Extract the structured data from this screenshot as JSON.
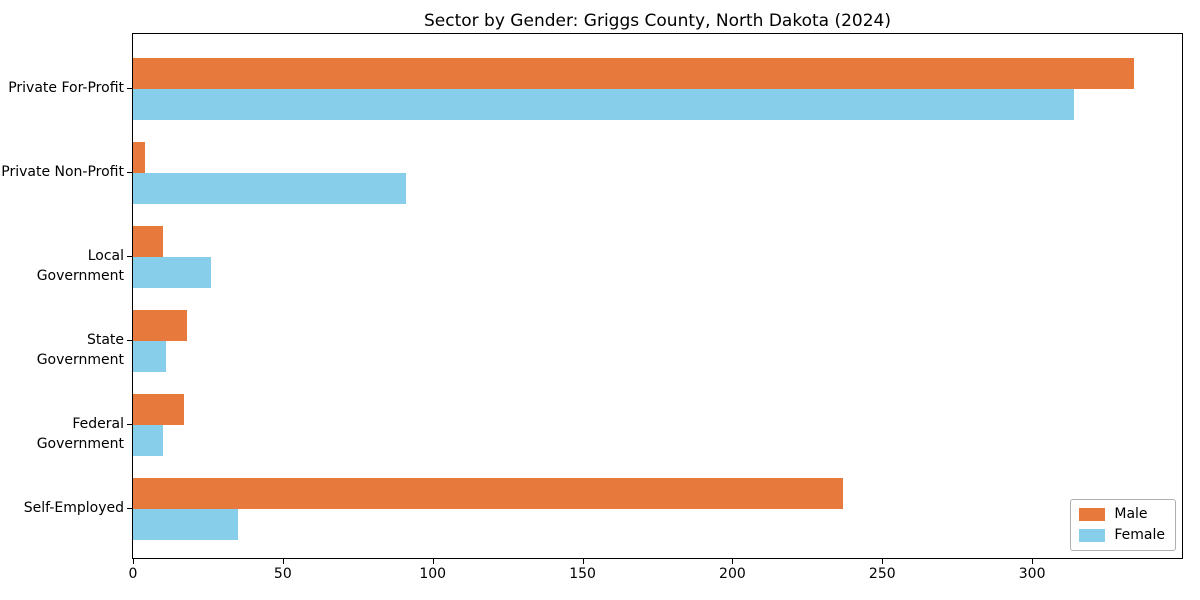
{
  "chart_data": {
    "type": "bar",
    "orientation": "horizontal",
    "title": "Sector by Gender: Griggs County, North Dakota (2024)",
    "categories": [
      "Private For-Profit",
      "Private Non-Profit",
      "Local Government",
      "State Government",
      "Federal Government",
      "Self-Employed"
    ],
    "series": [
      {
        "name": "Male",
        "color": "#e8793d",
        "values": [
          334,
          4,
          10,
          18,
          17,
          237
        ]
      },
      {
        "name": "Female",
        "color": "#87ceeb",
        "values": [
          314,
          91,
          26,
          11,
          10,
          35
        ]
      }
    ],
    "xlabel": "",
    "ylabel": "",
    "xlim": [
      0,
      350
    ],
    "xticks": [
      0,
      50,
      100,
      150,
      200,
      250,
      300
    ],
    "grid": false,
    "legend_position": "lower right",
    "colors": {
      "spine": "#000000",
      "legend_border": "#b0b0b0",
      "background": "#ffffff"
    }
  }
}
